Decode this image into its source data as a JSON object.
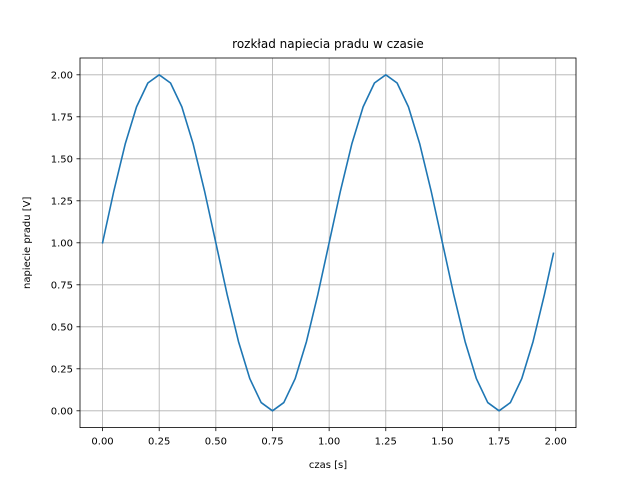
{
  "chart_data": {
    "type": "line",
    "title": "rozkład napiecia pradu w czasie",
    "xlabel": "czas [s]",
    "ylabel": "napiecie pradu [V]",
    "xlim": [
      -0.0995,
      2.0895
    ],
    "ylim": [
      -0.1,
      2.1
    ],
    "x_ticks": [
      "0.00",
      "0.25",
      "0.50",
      "0.75",
      "1.00",
      "1.25",
      "1.50",
      "1.75",
      "2.00"
    ],
    "y_ticks": [
      "0.00",
      "0.25",
      "0.50",
      "0.75",
      "1.00",
      "1.25",
      "1.50",
      "1.75",
      "2.00"
    ],
    "grid": true,
    "legend": "none",
    "series": [
      {
        "color": "#1f77b4",
        "x": [
          0.0,
          0.05,
          0.1,
          0.15,
          0.2,
          0.25,
          0.3,
          0.35,
          0.4,
          0.45,
          0.5,
          0.55,
          0.6,
          0.65,
          0.7,
          0.75,
          0.8,
          0.85,
          0.9,
          0.95,
          1.0,
          1.05,
          1.1,
          1.15,
          1.2,
          1.25,
          1.3,
          1.35,
          1.4,
          1.45,
          1.5,
          1.55,
          1.6,
          1.65,
          1.7,
          1.75,
          1.8,
          1.85,
          1.9,
          1.95,
          1.99
        ],
        "y": [
          1.0,
          1.309,
          1.588,
          1.809,
          1.951,
          2.0,
          1.951,
          1.809,
          1.588,
          1.309,
          1.0,
          0.691,
          0.412,
          0.191,
          0.049,
          0.0,
          0.049,
          0.191,
          0.412,
          0.691,
          1.0,
          1.309,
          1.588,
          1.809,
          1.951,
          2.0,
          1.951,
          1.809,
          1.588,
          1.309,
          1.0,
          0.691,
          0.412,
          0.191,
          0.049,
          0.0,
          0.049,
          0.191,
          0.412,
          0.691,
          0.937
        ]
      }
    ]
  }
}
